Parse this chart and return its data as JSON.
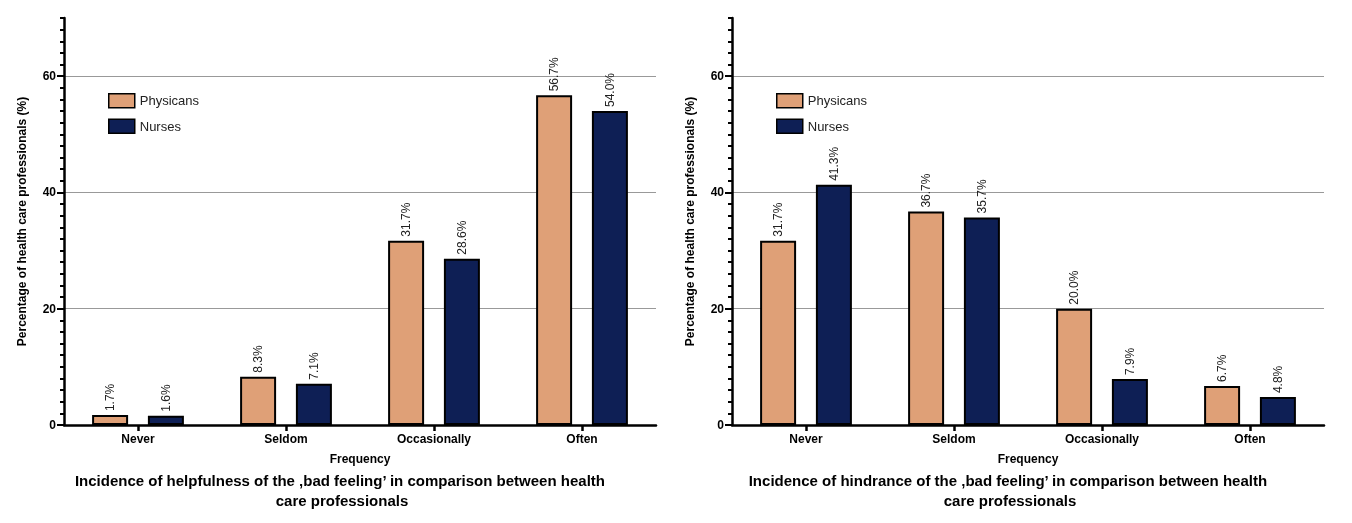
{
  "chart_data": [
    {
      "type": "bar",
      "title": "Incidence of helpfulness of the ‚bad feeling’ in comparison between health care professionals",
      "xlabel": "Frequency",
      "ylabel": "Percentage of health care professionals (%)",
      "categories": [
        "Never",
        "Seldom",
        "Occasionally",
        "Often"
      ],
      "series": [
        {
          "name": "Physicans",
          "color": "#dfa077",
          "values": [
            1.7,
            8.3,
            31.7,
            56.7
          ],
          "value_labels": [
            "1.7%",
            "8.3%",
            "31.7%",
            "56.7%"
          ]
        },
        {
          "name": "Nurses",
          "color": "#0e1f55",
          "values": [
            1.6,
            7.1,
            28.6,
            54.0
          ],
          "value_labels": [
            "1.6%",
            "7.1%",
            "28.6%",
            "54.0%"
          ]
        }
      ],
      "ylim": [
        0,
        70
      ],
      "yticks": [
        0,
        {
          "value": 2,
          "label": null
        },
        {
          "value": 4,
          "label": null
        },
        {
          "value": 6,
          "label": null
        },
        {
          "value": 8,
          "label": null
        },
        {
          "value": 10,
          "label": null
        },
        {
          "value": 12,
          "label": null
        },
        {
          "value": 14,
          "label": null
        },
        {
          "value": 16,
          "label": null
        },
        {
          "value": 18,
          "label": null
        },
        20,
        {
          "value": 22,
          "label": null
        },
        {
          "value": 24,
          "label": null
        },
        {
          "value": 26,
          "label": null
        },
        {
          "value": 28,
          "label": null
        },
        {
          "value": 30,
          "label": null
        },
        {
          "value": 32,
          "label": null
        },
        {
          "value": 34,
          "label": null
        },
        {
          "value": 36,
          "label": null
        },
        {
          "value": 38,
          "label": null
        },
        40,
        {
          "value": 42,
          "label": null
        },
        {
          "value": 44,
          "label": null
        },
        {
          "value": 46,
          "label": null
        },
        {
          "value": 48,
          "label": null
        },
        {
          "value": 50,
          "label": null
        },
        {
          "value": 52,
          "label": null
        },
        {
          "value": 54,
          "label": null
        },
        {
          "value": 56,
          "label": null
        },
        {
          "value": 58,
          "label": null
        },
        60,
        {
          "value": 62,
          "label": null
        },
        {
          "value": 64,
          "label": null
        },
        {
          "value": 66,
          "label": null
        },
        {
          "value": 68,
          "label": null
        },
        {
          "value": 70,
          "label": null
        }
      ],
      "grid": "y",
      "legend": "top left"
    },
    {
      "type": "bar",
      "title": "Incidence of hindrance of the ‚bad feeling’ in comparison between health care professionals",
      "xlabel": "Frequency",
      "ylabel": "Percentage of health care professionals (%)",
      "categories": [
        "Never",
        "Seldom",
        "Occasionally",
        "Often"
      ],
      "series": [
        {
          "name": "Physicans",
          "color": "#dfa077",
          "values": [
            31.7,
            36.7,
            20.0,
            6.7
          ],
          "value_labels": [
            "31.7%",
            "36.7%",
            "20.0%",
            "6.7%"
          ]
        },
        {
          "name": "Nurses",
          "color": "#0e1f55",
          "values": [
            41.3,
            35.7,
            7.9,
            4.8
          ],
          "value_labels": [
            "41.3%",
            "35.7%",
            "7.9%",
            "4.8%"
          ]
        }
      ],
      "ylim": [
        0,
        70
      ],
      "yticks": [
        0,
        {
          "value": 2,
          "label": null
        },
        {
          "value": 4,
          "label": null
        },
        {
          "value": 6,
          "label": null
        },
        {
          "value": 8,
          "label": null
        },
        {
          "value": 10,
          "label": null
        },
        {
          "value": 12,
          "label": null
        },
        {
          "value": 14,
          "label": null
        },
        {
          "value": 16,
          "label": null
        },
        {
          "value": 18,
          "label": null
        },
        20,
        {
          "value": 22,
          "label": null
        },
        {
          "value": 24,
          "label": null
        },
        {
          "value": 26,
          "label": null
        },
        {
          "value": 28,
          "label": null
        },
        {
          "value": 30,
          "label": null
        },
        {
          "value": 32,
          "label": null
        },
        {
          "value": 34,
          "label": null
        },
        {
          "value": 36,
          "label": null
        },
        {
          "value": 38,
          "label": null
        },
        40,
        {
          "value": 42,
          "label": null
        },
        {
          "value": 44,
          "label": null
        },
        {
          "value": 46,
          "label": null
        },
        {
          "value": 48,
          "label": null
        },
        {
          "value": 50,
          "label": null
        },
        {
          "value": 52,
          "label": null
        },
        {
          "value": 54,
          "label": null
        },
        {
          "value": 56,
          "label": null
        },
        {
          "value": 58,
          "label": null
        },
        60,
        {
          "value": 62,
          "label": null
        },
        {
          "value": 64,
          "label": null
        },
        {
          "value": 66,
          "label": null
        },
        {
          "value": 68,
          "label": null
        },
        {
          "value": 70,
          "label": null
        }
      ],
      "grid": "y",
      "legend": "top left"
    }
  ]
}
